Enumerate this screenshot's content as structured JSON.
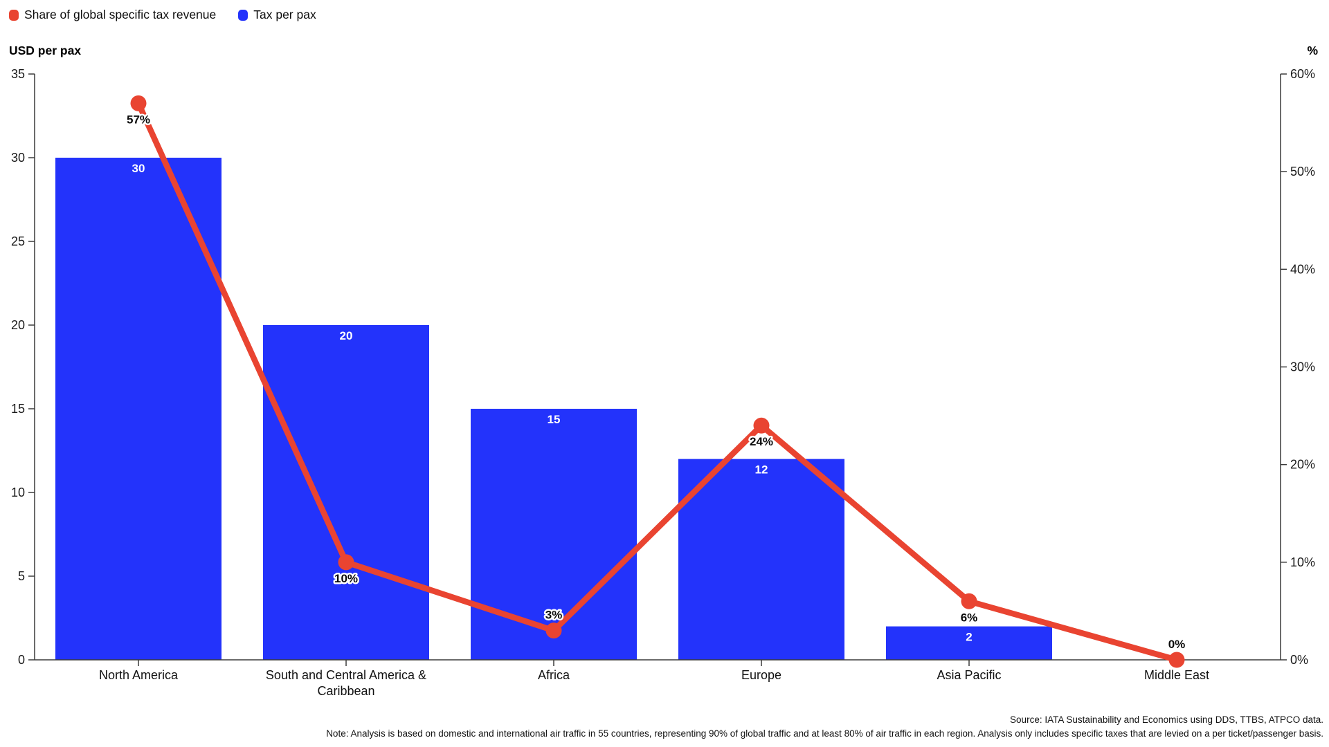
{
  "legend": {
    "items": [
      {
        "label": "Share of global specific tax revenue",
        "color": "#e94431",
        "series": "line"
      },
      {
        "label": "Tax per pax",
        "color": "#2333fb",
        "series": "bar"
      }
    ]
  },
  "chart_data": {
    "type": "combo",
    "categories": [
      "North America",
      "South and Central America & Caribbean",
      "Africa",
      "Europe",
      "Asia Pacific",
      "Middle East"
    ],
    "series": [
      {
        "name": "Tax per pax",
        "type": "bar",
        "axis": "left",
        "color": "#2333fb",
        "values": [
          30,
          20,
          15,
          12,
          2,
          0
        ],
        "labels": [
          "30",
          "20",
          "15",
          "12",
          "2",
          ""
        ]
      },
      {
        "name": "Share of global specific tax revenue",
        "type": "line",
        "axis": "right",
        "color": "#e94431",
        "values": [
          57,
          10,
          3,
          24,
          6,
          0
        ],
        "labels": [
          "57%",
          "10%",
          "3%",
          "24%",
          "6%",
          "0%"
        ],
        "label_positions": [
          "below",
          "below",
          "above",
          "below",
          "below",
          "above"
        ]
      }
    ],
    "left_axis": {
      "title": "USD per pax",
      "min": 0,
      "max": 35,
      "step": 5,
      "suffix": ""
    },
    "right_axis": {
      "title": "%",
      "min": 0,
      "max": 60,
      "step": 10,
      "suffix": "%"
    },
    "grid": false,
    "legend_position": "top-left"
  },
  "footer": {
    "source": "Source: IATA Sustainability and Economics using DDS, TTBS, ATPCO data.",
    "note": "Note: Analysis is based on domestic and international air traffic in 55 countries, representing 90% of global traffic and at least 80% of air traffic in each region. Analysis only includes specific taxes that are levied on a per ticket/passenger basis."
  }
}
